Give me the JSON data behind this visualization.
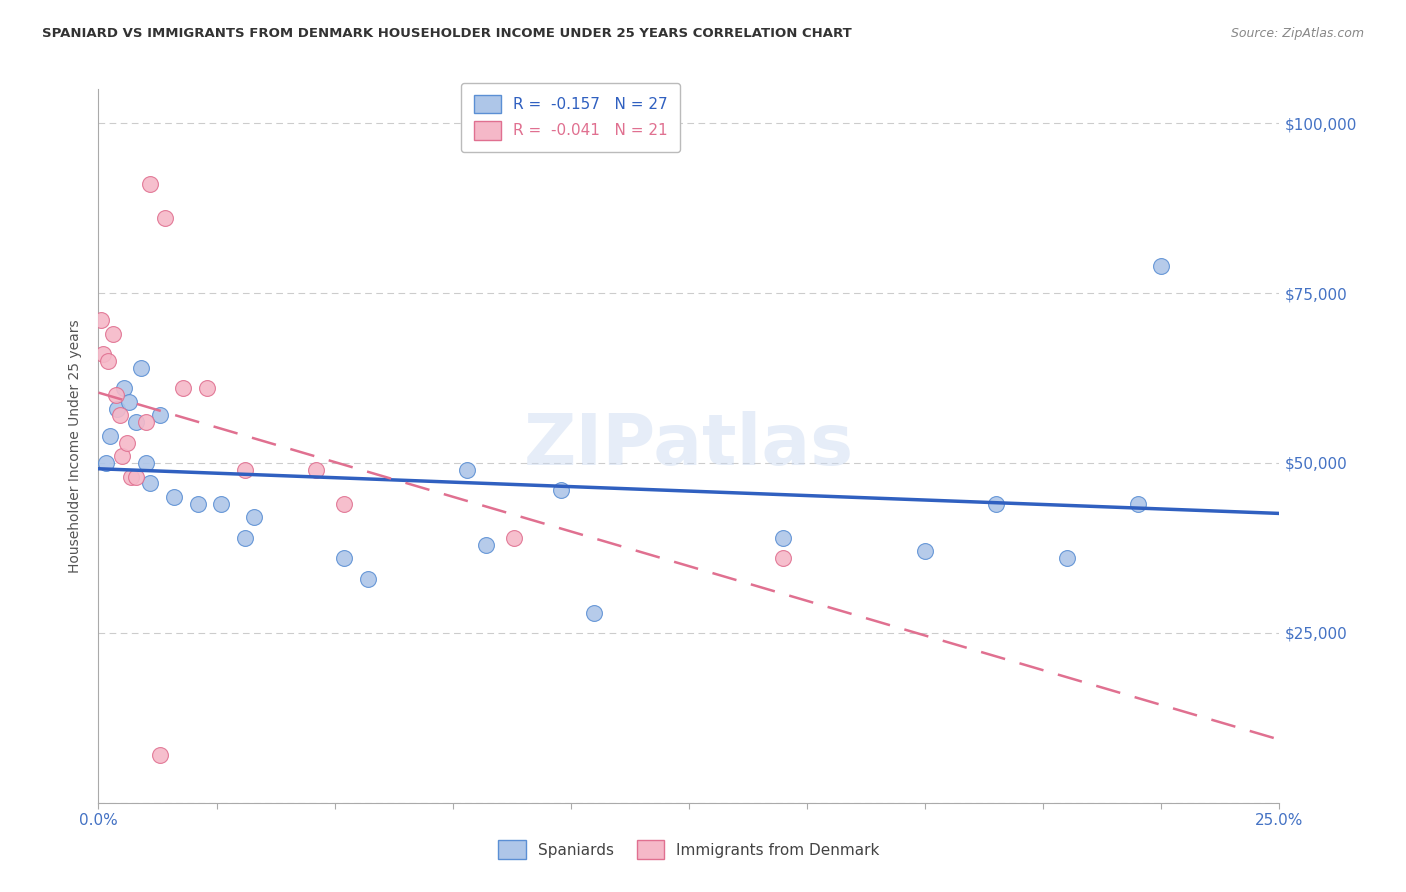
{
  "title": "SPANIARD VS IMMIGRANTS FROM DENMARK HOUSEHOLDER INCOME UNDER 25 YEARS CORRELATION CHART",
  "source": "Source: ZipAtlas.com",
  "ylabel": "Householder Income Under 25 years",
  "y_ticks": [
    0,
    25000,
    50000,
    75000,
    100000
  ],
  "y_tick_labels_right": [
    "",
    "$25,000",
    "$50,000",
    "$75,000",
    "$100,000"
  ],
  "x_min": 0.0,
  "x_max": 25.0,
  "y_min": 0,
  "y_max": 105000,
  "spaniards_x": [
    0.15,
    0.25,
    0.4,
    0.55,
    0.65,
    0.8,
    0.9,
    1.0,
    1.1,
    1.3,
    1.6,
    2.1,
    2.6,
    3.1,
    3.3,
    5.2,
    5.7,
    7.8,
    8.2,
    9.8,
    10.5,
    14.5,
    17.5,
    19.0,
    20.5,
    22.0,
    22.5
  ],
  "spaniards_y": [
    50000,
    54000,
    58000,
    61000,
    59000,
    56000,
    64000,
    50000,
    47000,
    57000,
    45000,
    44000,
    44000,
    39000,
    42000,
    36000,
    33000,
    49000,
    38000,
    46000,
    28000,
    39000,
    37000,
    44000,
    36000,
    44000,
    79000
  ],
  "denmark_x": [
    0.05,
    0.1,
    0.2,
    0.3,
    0.38,
    0.45,
    0.5,
    0.6,
    0.7,
    0.8,
    1.0,
    1.1,
    1.4,
    1.8,
    2.3,
    3.1,
    4.6,
    5.2,
    8.8,
    14.5,
    1.3
  ],
  "denmark_y": [
    71000,
    66000,
    65000,
    69000,
    60000,
    57000,
    51000,
    53000,
    48000,
    48000,
    56000,
    91000,
    86000,
    61000,
    61000,
    49000,
    49000,
    44000,
    39000,
    36000,
    7000
  ],
  "spaniards_R": -0.157,
  "spaniards_N": 27,
  "denmark_R": -0.041,
  "denmark_N": 21,
  "spaniard_color": "#aec6e8",
  "denmark_color": "#f5b8c8",
  "spaniard_edge_color": "#5b8fd4",
  "denmark_edge_color": "#e07090",
  "spaniard_line_color": "#3060c0",
  "denmark_line_color": "#e07090",
  "legend_label_spaniard": "Spaniards",
  "legend_label_denmark": "Immigrants from Denmark",
  "watermark": "ZIPatlas",
  "background_color": "#ffffff",
  "grid_color": "#cccccc",
  "title_color": "#333333",
  "right_label_color": "#4472c4",
  "bottom_label_color": "#4472c4"
}
